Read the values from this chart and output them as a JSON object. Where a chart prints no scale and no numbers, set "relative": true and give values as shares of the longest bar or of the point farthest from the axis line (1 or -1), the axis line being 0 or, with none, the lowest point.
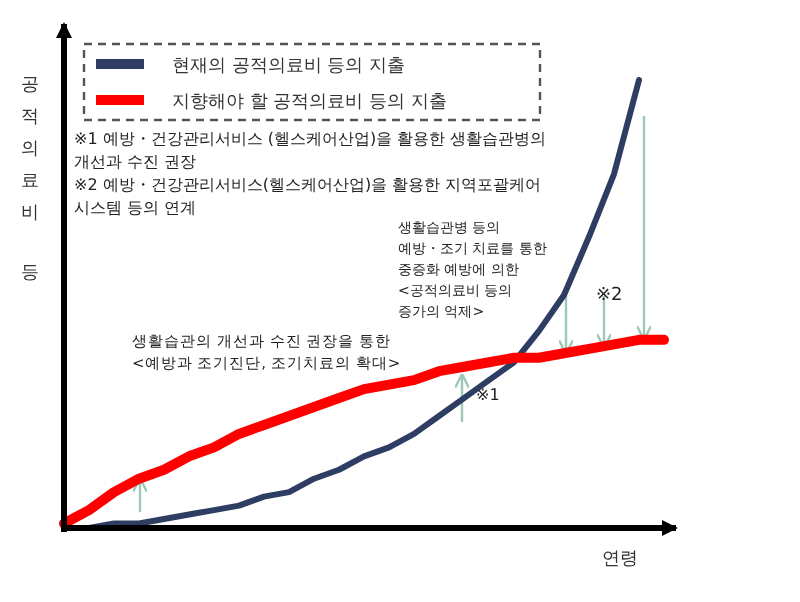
{
  "chart_data": {
    "type": "line",
    "relative": true,
    "ylabel": "공적의료비 등",
    "xlabel": "연령",
    "legend": "top",
    "categories": [
      null,
      null,
      null,
      null,
      null,
      null,
      null,
      null,
      null,
      null,
      null,
      null,
      null,
      null,
      null,
      null,
      null,
      null,
      null,
      null,
      null,
      null,
      null,
      null,
      null
    ],
    "series": [
      {
        "name": "현재의 공적의료비 등의 지출",
        "color": "#2e3e63",
        "values": [
          0,
          0,
          0.01,
          0.01,
          0.02,
          0.03,
          0.04,
          0.05,
          0.07,
          0.08,
          0.11,
          0.13,
          0.16,
          0.18,
          0.21,
          0.25,
          0.29,
          0.33,
          0.37,
          0.44,
          0.52,
          0.65,
          0.79,
          1.0,
          null
        ]
      },
      {
        "name": "지향해야 할 공적의료비 등의 지출",
        "color": "#ff0000",
        "values": [
          0.01,
          0.04,
          0.08,
          0.11,
          0.13,
          0.16,
          0.18,
          0.21,
          0.23,
          0.25,
          0.27,
          0.29,
          0.31,
          0.32,
          0.33,
          0.35,
          0.36,
          0.37,
          0.38,
          0.38,
          0.39,
          0.4,
          0.41,
          0.42,
          0.42
        ]
      }
    ],
    "annotations": [
      "※1 예방・건강관리서비스 (헬스케어산업)을 활용한 생활습관병의 개선과 수진 권장",
      "※2 예방・건강관리서비스(헬스케어산업)을 활용한 지역포괄케어 시스템 등의 연계",
      "생활습관병 등의 예방・조기 치료를 통한 중증화 예방에 의한 <공적의료비 등의 증가의 억제>",
      "※2",
      "생활습관의 개선과 수진 권장을 통한 <예방과 조기진단, 조기치료의 확대>",
      "※1"
    ]
  }
}
